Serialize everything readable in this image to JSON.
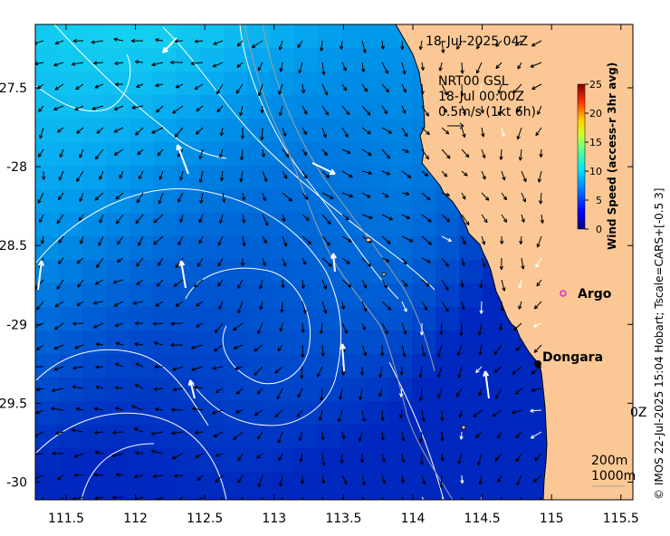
{
  "header": {
    "timestamp": "18-Jul-2025 04Z"
  },
  "annotation": {
    "model": "NRT00 GSL",
    "time": "18-Jul 00:00Z",
    "scale": "0.5m/s (1kt 6h)"
  },
  "places": [
    {
      "name": "Argo",
      "lon": 115.12,
      "lat": -28.84,
      "marker": "ring",
      "color": "#e020e0"
    },
    {
      "name": "Dongara",
      "lon": 114.93,
      "lat": -29.25,
      "marker": "dot",
      "color": "#000000"
    }
  ],
  "legend": {
    "title": "Wind Speed (access-r 3hr avg)",
    "ticks": [
      "0",
      "5",
      "10",
      "15",
      "20",
      "25"
    ],
    "colors": [
      "#00007f",
      "#0000ff",
      "#007fff",
      "#00ffff",
      "#7fff7f",
      "#ffff00",
      "#ff7f00",
      "#ff0000",
      "#7f0000"
    ]
  },
  "depth_legend": [
    "200m",
    "1000m"
  ],
  "partial_label": "0Z",
  "credit": "© IMOS 22-Jul-2025 15:04 Hobart; Tscale=CARS+[-0.5 3]",
  "axes": {
    "x_ticks": [
      "111.5",
      "112",
      "112.5",
      "113",
      "113.5",
      "114",
      "114.5",
      "115",
      "115.5"
    ],
    "y_ticks": [
      "-27.5",
      "-28",
      "-28.5",
      "-29",
      "-29.5",
      "-30"
    ]
  },
  "colors": {
    "land": "#fbc895",
    "coast": "#000000",
    "contour": "#ffffff",
    "isobath": "#a0a0a0"
  }
}
